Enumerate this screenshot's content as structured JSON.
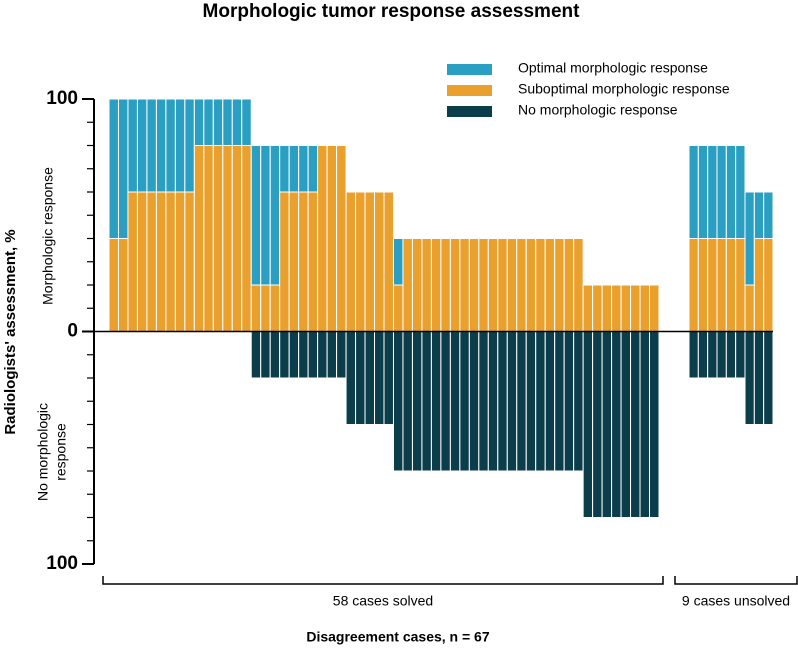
{
  "chart_data": {
    "type": "bar",
    "title": "Morphologic tumor response assessment",
    "ylabel": "Radiologists' assessment, %",
    "upper_label": "Morphologic response",
    "lower_label": [
      "No morphologic",
      "response"
    ],
    "xlabel": "Disagreement cases, n = 67",
    "ylim": [
      -100,
      100
    ],
    "yticks": [
      {
        "value": -100,
        "label": "100"
      },
      0,
      100
    ],
    "minor_yticks": [
      -90,
      -80,
      -70,
      -60,
      -50,
      -40,
      -30,
      -20,
      -10,
      10,
      20,
      30,
      40,
      50,
      60,
      70,
      80,
      90
    ],
    "legend": [
      {
        "name": "Optimal morphologic response",
        "color": "#2a9fc2"
      },
      {
        "name": "Suboptimal morphologic response",
        "color": "#e9a02d"
      },
      {
        "name": "No morphologic response",
        "color": "#0c3d4b"
      }
    ],
    "panels": [
      {
        "label": "58 cases solved",
        "series": [
          {
            "values": [
              60,
              60,
              40,
              40,
              40,
              40,
              40,
              40,
              40,
              20,
              20,
              20,
              20,
              20,
              20,
              60,
              60,
              60,
              20,
              20,
              20,
              20,
              0,
              0,
              0,
              0,
              0,
              0,
              0,
              0,
              20,
              0,
              0,
              0,
              0,
              0,
              0,
              0,
              0,
              0,
              0,
              0,
              0,
              0,
              0,
              0,
              0,
              0,
              0,
              0,
              0,
              0,
              0,
              0,
              0,
              0,
              0,
              0
            ]
          },
          {
            "values": [
              40,
              40,
              60,
              60,
              60,
              60,
              60,
              60,
              60,
              80,
              80,
              80,
              80,
              80,
              80,
              20,
              20,
              20,
              60,
              60,
              60,
              60,
              80,
              80,
              80,
              60,
              60,
              60,
              60,
              60,
              20,
              40,
              40,
              40,
              40,
              40,
              40,
              40,
              40,
              40,
              40,
              40,
              40,
              40,
              40,
              40,
              40,
              40,
              40,
              40,
              20,
              20,
              20,
              20,
              20,
              20,
              20,
              20
            ]
          },
          {
            "values": [
              0,
              0,
              0,
              0,
              0,
              0,
              0,
              0,
              0,
              0,
              0,
              0,
              0,
              0,
              0,
              20,
              20,
              20,
              20,
              20,
              20,
              20,
              20,
              20,
              20,
              40,
              40,
              40,
              40,
              40,
              60,
              60,
              60,
              60,
              60,
              60,
              60,
              60,
              60,
              60,
              60,
              60,
              60,
              60,
              60,
              60,
              60,
              60,
              60,
              60,
              80,
              80,
              80,
              80,
              80,
              80,
              80,
              80
            ]
          }
        ]
      },
      {
        "label": "9 cases unsolved",
        "series": [
          {
            "values": [
              40,
              40,
              40,
              40,
              40,
              40,
              40,
              20,
              20
            ]
          },
          {
            "values": [
              40,
              40,
              40,
              40,
              40,
              40,
              20,
              40,
              40
            ]
          },
          {
            "values": [
              20,
              20,
              20,
              20,
              20,
              20,
              40,
              40,
              40
            ]
          }
        ]
      }
    ]
  }
}
